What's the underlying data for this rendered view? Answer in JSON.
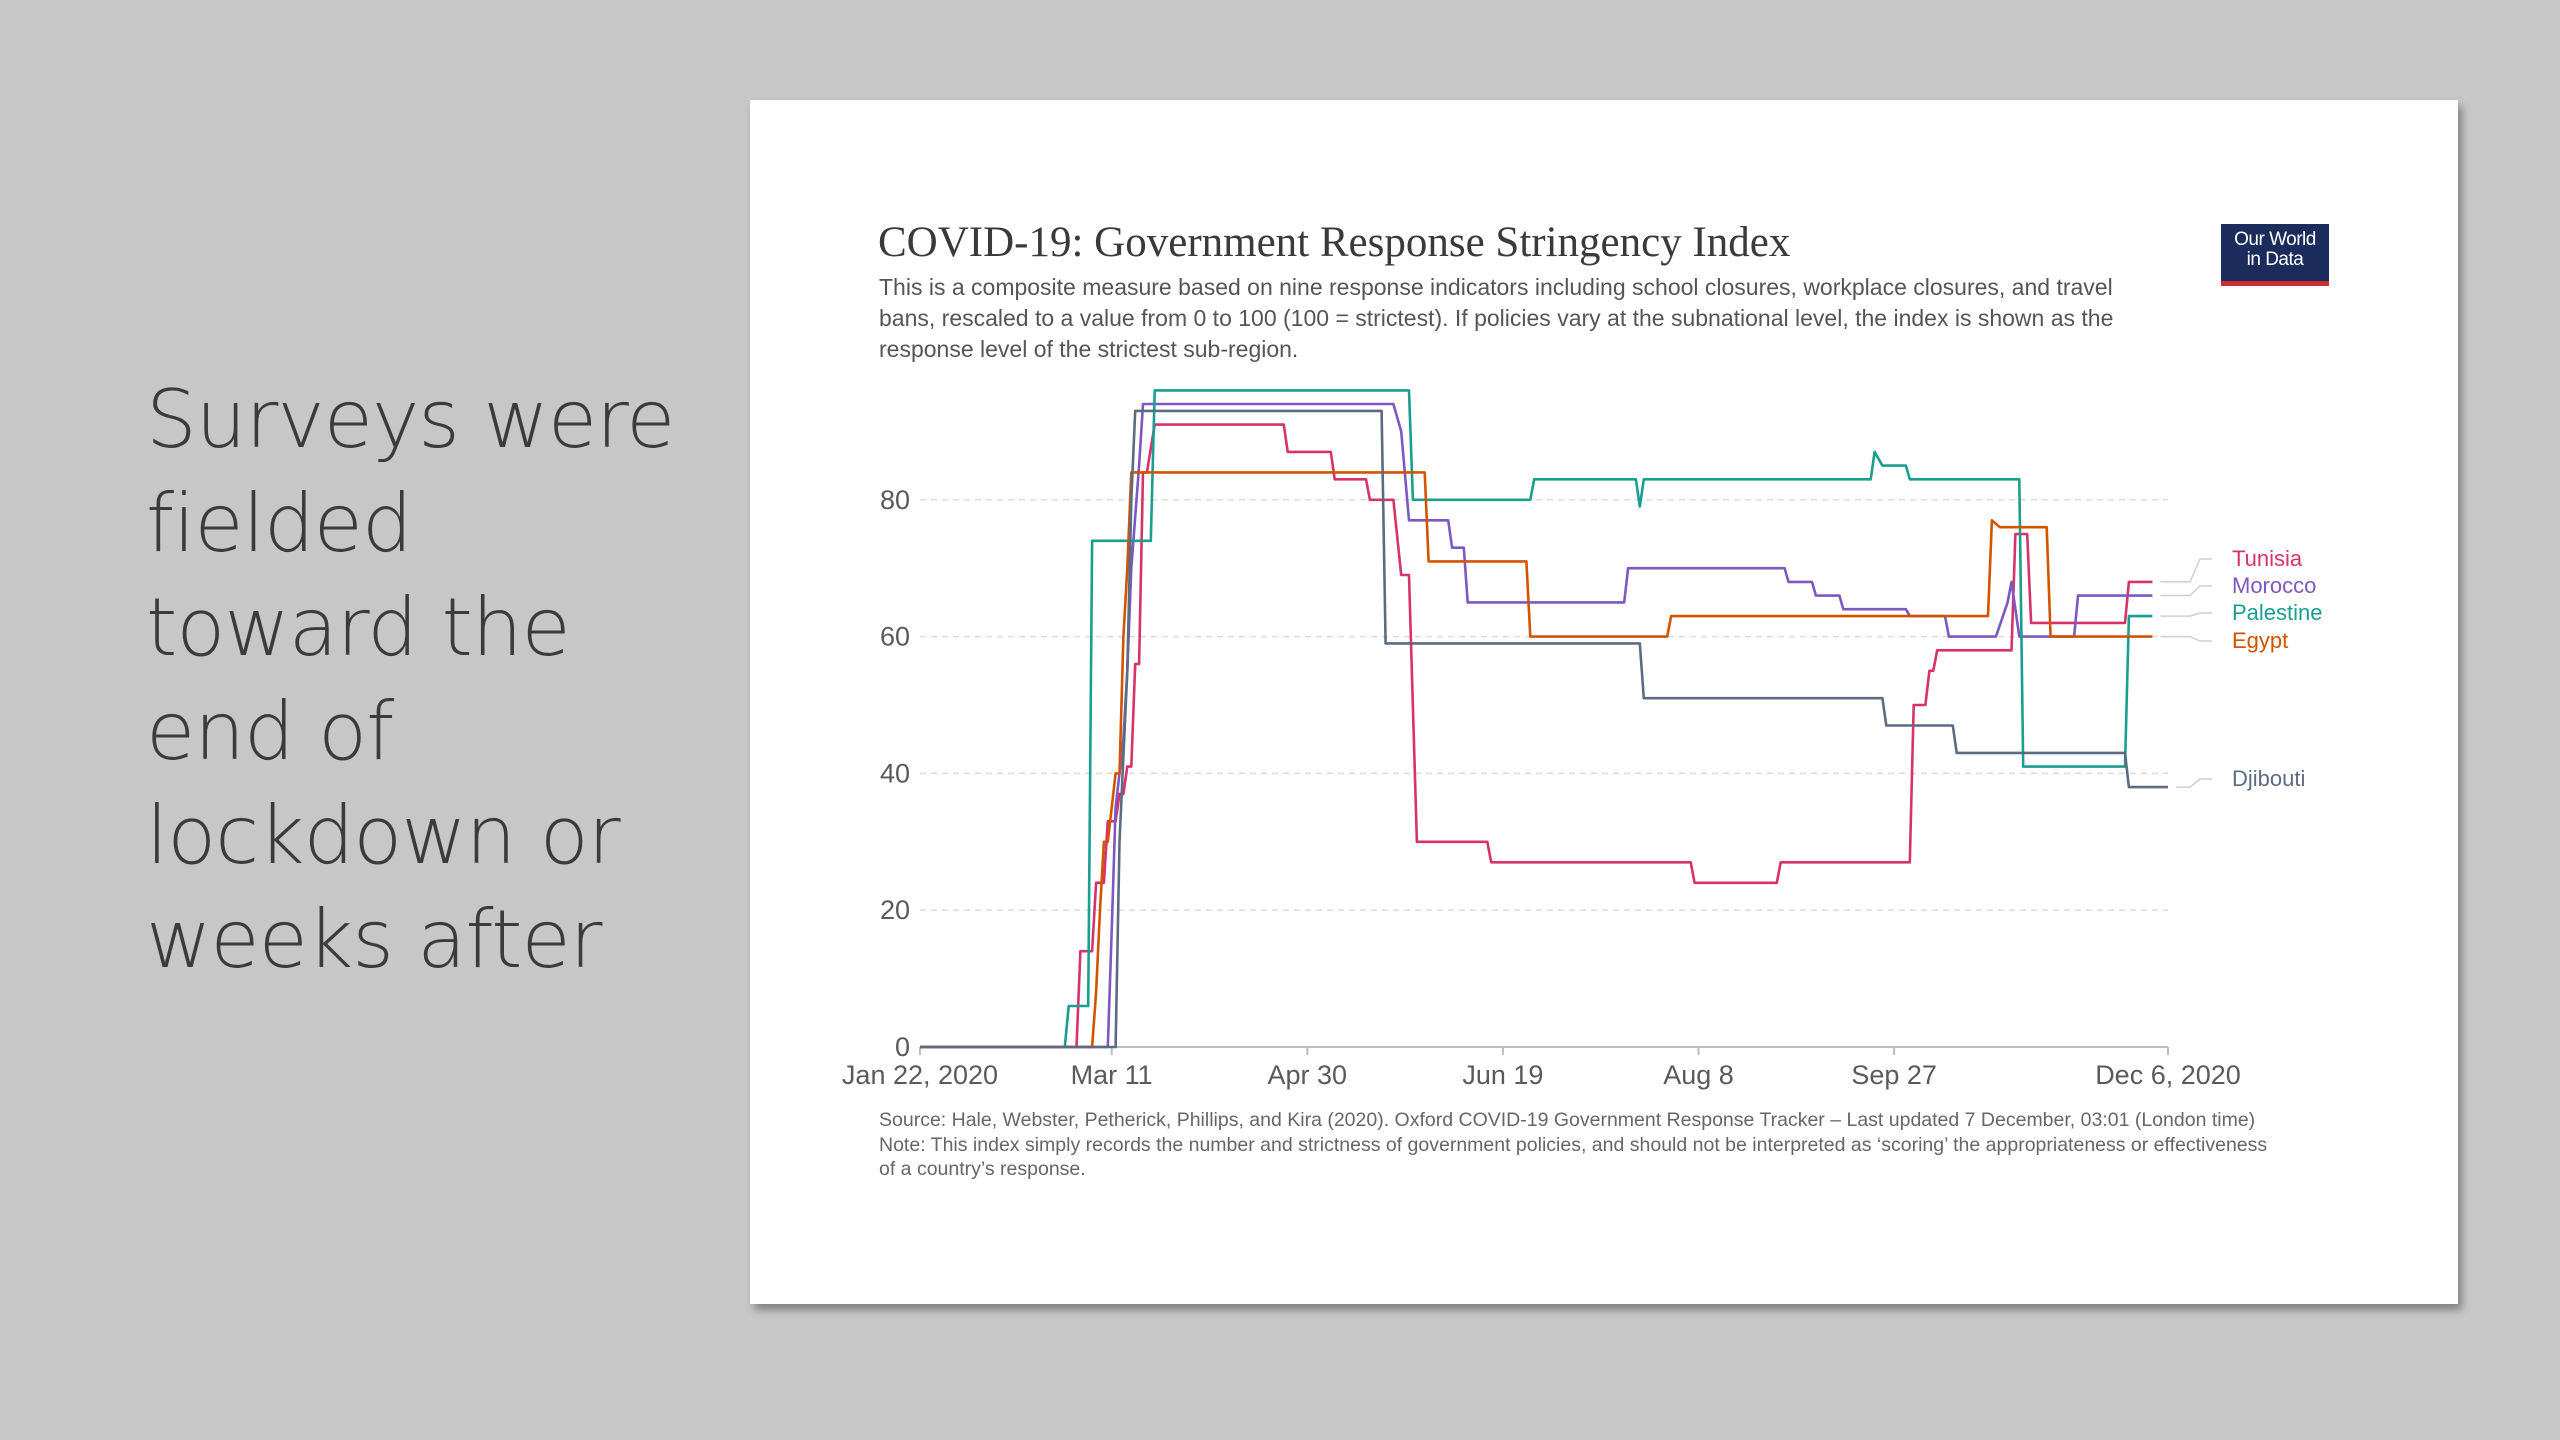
{
  "slide": {
    "text_lines": [
      "Surveys were",
      "fielded",
      "toward the",
      "end of",
      "lockdown or",
      "weeks after"
    ]
  },
  "logo": {
    "line1": "Our World",
    "line2": "in Data",
    "bg_color": "#1b2b5b",
    "accent_color": "#ce2d2d"
  },
  "chart_data": {
    "type": "line",
    "title": "COVID-19: Government Response Stringency Index",
    "subtitle": "This is a composite measure based on nine response indicators including school closures, workplace closures, and travel bans, rescaled to a value from 0 to 100 (100 = strictest). If policies vary at the subnational level, the index is shown as the response level of the strictest sub-region.",
    "source": "Source: Hale, Webster, Petherick, Phillips, and Kira (2020). Oxford COVID-19 Government Response Tracker – Last updated 7 December, 03:01 (London time)",
    "note": "Note: This index simply records the number and strictness of government policies, and should not be interpreted as ‘scoring’ the appropriateness or effectiveness of a country’s response.",
    "x_type": "date",
    "xlim": [
      "2020-01-22",
      "2020-12-06"
    ],
    "x_ticks": [
      {
        "date": "2020-01-22",
        "label": "Jan 22, 2020"
      },
      {
        "date": "2020-03-11",
        "label": "Mar 11"
      },
      {
        "date": "2020-04-30",
        "label": "Apr 30"
      },
      {
        "date": "2020-06-19",
        "label": "Jun 19"
      },
      {
        "date": "2020-08-08",
        "label": "Aug 8"
      },
      {
        "date": "2020-09-27",
        "label": "Sep 27"
      },
      {
        "date": "2020-12-06",
        "label": "Dec 6, 2020"
      }
    ],
    "ylim": [
      0,
      100
    ],
    "y_ticks": [
      0,
      20,
      40,
      60,
      80
    ],
    "grid": "horizontal dashed",
    "legend_placement": "right, at line ends",
    "series": [
      {
        "name": "Tunisia",
        "color": "#d6336c",
        "points": [
          [
            "2020-01-22",
            0
          ],
          [
            "2020-03-02",
            0
          ],
          [
            "2020-03-03",
            14
          ],
          [
            "2020-03-06",
            14
          ],
          [
            "2020-03-07",
            24
          ],
          [
            "2020-03-09",
            24
          ],
          [
            "2020-03-10",
            33
          ],
          [
            "2020-03-12",
            33
          ],
          [
            "2020-03-13",
            37
          ],
          [
            "2020-03-14",
            37
          ],
          [
            "2020-03-15",
            41
          ],
          [
            "2020-03-16",
            41
          ],
          [
            "2020-03-17",
            56
          ],
          [
            "2020-03-18",
            56
          ],
          [
            "2020-03-19",
            84
          ],
          [
            "2020-03-20",
            84
          ],
          [
            "2020-03-22",
            91
          ],
          [
            "2020-04-24",
            91
          ],
          [
            "2020-04-25",
            87
          ],
          [
            "2020-05-06",
            87
          ],
          [
            "2020-05-07",
            83
          ],
          [
            "2020-05-15",
            83
          ],
          [
            "2020-05-16",
            80
          ],
          [
            "2020-05-22",
            80
          ],
          [
            "2020-05-24",
            69
          ],
          [
            "2020-05-26",
            69
          ],
          [
            "2020-05-28",
            30
          ],
          [
            "2020-06-15",
            30
          ],
          [
            "2020-06-16",
            27
          ],
          [
            "2020-08-06",
            27
          ],
          [
            "2020-08-07",
            24
          ],
          [
            "2020-08-28",
            24
          ],
          [
            "2020-08-29",
            27
          ],
          [
            "2020-10-01",
            27
          ],
          [
            "2020-10-02",
            50
          ],
          [
            "2020-10-05",
            50
          ],
          [
            "2020-10-06",
            55
          ],
          [
            "2020-10-07",
            55
          ],
          [
            "2020-10-08",
            58
          ],
          [
            "2020-10-27",
            58
          ],
          [
            "2020-10-28",
            75
          ],
          [
            "2020-10-31",
            75
          ],
          [
            "2020-11-01",
            62
          ],
          [
            "2020-11-25",
            62
          ],
          [
            "2020-11-26",
            68
          ],
          [
            "2020-12-02",
            68
          ]
        ]
      },
      {
        "name": "Morocco",
        "color": "#7e57c2",
        "points": [
          [
            "2020-01-22",
            0
          ],
          [
            "2020-03-02",
            0
          ],
          [
            "2020-03-03",
            0
          ],
          [
            "2020-03-10",
            0
          ],
          [
            "2020-03-11",
            17
          ],
          [
            "2020-03-12",
            35
          ],
          [
            "2020-03-14",
            45
          ],
          [
            "2020-03-15",
            55
          ],
          [
            "2020-03-16",
            70
          ],
          [
            "2020-03-18",
            85
          ],
          [
            "2020-03-19",
            94
          ],
          [
            "2020-05-22",
            94
          ],
          [
            "2020-05-24",
            90
          ],
          [
            "2020-05-26",
            77
          ],
          [
            "2020-06-05",
            77
          ],
          [
            "2020-06-06",
            73
          ],
          [
            "2020-06-09",
            73
          ],
          [
            "2020-06-10",
            65
          ],
          [
            "2020-07-20",
            65
          ],
          [
            "2020-07-21",
            70
          ],
          [
            "2020-08-30",
            70
          ],
          [
            "2020-08-31",
            68
          ],
          [
            "2020-09-06",
            68
          ],
          [
            "2020-09-07",
            66
          ],
          [
            "2020-09-13",
            66
          ],
          [
            "2020-09-14",
            64
          ],
          [
            "2020-09-30",
            64
          ],
          [
            "2020-10-01",
            63
          ],
          [
            "2020-10-10",
            63
          ],
          [
            "2020-10-11",
            60
          ],
          [
            "2020-10-23",
            60
          ],
          [
            "2020-10-26",
            65
          ],
          [
            "2020-10-27",
            68
          ],
          [
            "2020-10-29",
            60
          ],
          [
            "2020-11-12",
            60
          ],
          [
            "2020-11-13",
            66
          ],
          [
            "2020-12-02",
            66
          ]
        ]
      },
      {
        "name": "Palestine",
        "color": "#1a9e8f",
        "points": [
          [
            "2020-01-22",
            0
          ],
          [
            "2020-02-28",
            0
          ],
          [
            "2020-02-29",
            6
          ],
          [
            "2020-03-05",
            6
          ],
          [
            "2020-03-06",
            74
          ],
          [
            "2020-03-21",
            74
          ],
          [
            "2020-03-22",
            96
          ],
          [
            "2020-05-26",
            96
          ],
          [
            "2020-05-27",
            80
          ],
          [
            "2020-06-26",
            80
          ],
          [
            "2020-06-27",
            83
          ],
          [
            "2020-07-23",
            83
          ],
          [
            "2020-07-24",
            79
          ],
          [
            "2020-07-25",
            83
          ],
          [
            "2020-09-21",
            83
          ],
          [
            "2020-09-22",
            87
          ],
          [
            "2020-09-24",
            85
          ],
          [
            "2020-09-30",
            85
          ],
          [
            "2020-10-01",
            83
          ],
          [
            "2020-10-29",
            83
          ],
          [
            "2020-10-30",
            41
          ],
          [
            "2020-11-25",
            41
          ],
          [
            "2020-11-26",
            63
          ],
          [
            "2020-12-02",
            63
          ]
        ]
      },
      {
        "name": "Egypt",
        "color": "#d35400",
        "points": [
          [
            "2020-01-22",
            0
          ],
          [
            "2020-03-06",
            0
          ],
          [
            "2020-03-07",
            8
          ],
          [
            "2020-03-08",
            20
          ],
          [
            "2020-03-09",
            30
          ],
          [
            "2020-03-10",
            30
          ],
          [
            "2020-03-12",
            40
          ],
          [
            "2020-03-13",
            40
          ],
          [
            "2020-03-14",
            60
          ],
          [
            "2020-03-15",
            70
          ],
          [
            "2020-03-16",
            84
          ],
          [
            "2020-05-30",
            84
          ],
          [
            "2020-05-31",
            71
          ],
          [
            "2020-06-25",
            71
          ],
          [
            "2020-06-26",
            60
          ],
          [
            "2020-07-31",
            60
          ],
          [
            "2020-08-01",
            63
          ],
          [
            "2020-10-21",
            63
          ],
          [
            "2020-10-22",
            77
          ],
          [
            "2020-10-24",
            76
          ],
          [
            "2020-11-05",
            76
          ],
          [
            "2020-11-06",
            60
          ],
          [
            "2020-12-02",
            60
          ]
        ]
      },
      {
        "name": "Djibouti",
        "color": "#5c6b82",
        "points": [
          [
            "2020-01-22",
            0
          ],
          [
            "2020-03-04",
            0
          ],
          [
            "2020-03-05",
            0
          ],
          [
            "2020-03-12",
            0
          ],
          [
            "2020-03-13",
            30
          ],
          [
            "2020-03-15",
            55
          ],
          [
            "2020-03-16",
            80
          ],
          [
            "2020-03-17",
            93
          ],
          [
            "2020-05-19",
            93
          ],
          [
            "2020-05-20",
            59
          ],
          [
            "2020-07-24",
            59
          ],
          [
            "2020-07-25",
            51
          ],
          [
            "2020-09-24",
            51
          ],
          [
            "2020-09-25",
            47
          ],
          [
            "2020-10-12",
            47
          ],
          [
            "2020-10-13",
            43
          ],
          [
            "2020-11-25",
            43
          ],
          [
            "2020-11-26",
            38
          ],
          [
            "2020-12-06",
            38
          ]
        ]
      }
    ]
  }
}
